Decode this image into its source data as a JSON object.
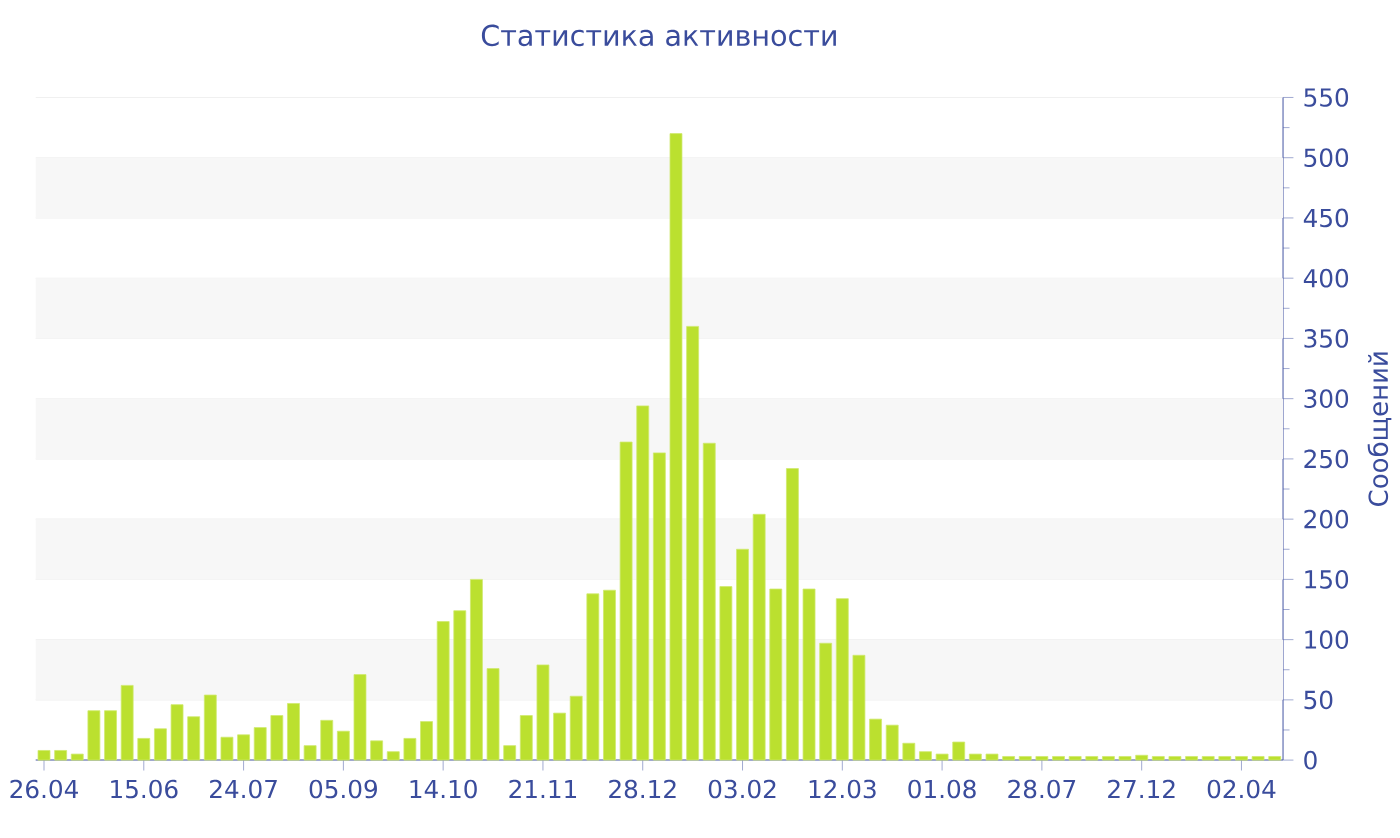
{
  "chart_data": {
    "type": "bar",
    "title": "Статистика активности",
    "ylabel": "Сообщений",
    "categories": [
      "26.04",
      null,
      null,
      null,
      null,
      null,
      "15.06",
      null,
      null,
      null,
      null,
      null,
      "24.07",
      null,
      null,
      null,
      null,
      null,
      "05.09",
      null,
      null,
      null,
      null,
      null,
      "14.10",
      null,
      null,
      null,
      null,
      null,
      "21.11",
      null,
      null,
      null,
      null,
      null,
      "28.12",
      null,
      null,
      null,
      null,
      null,
      "03.02",
      null,
      null,
      null,
      null,
      null,
      "12.03",
      null,
      null,
      null,
      null,
      null,
      "01.08",
      null,
      null,
      null,
      null,
      null,
      "28.07",
      null,
      null,
      null,
      null,
      null,
      "27.12",
      null,
      null,
      null,
      null,
      null,
      "02.04",
      null,
      null
    ],
    "values": [
      8,
      8,
      5,
      41,
      41,
      62,
      18,
      26,
      46,
      36,
      54,
      19,
      21,
      27,
      37,
      47,
      12,
      33,
      24,
      71,
      16,
      7,
      18,
      32,
      115,
      124,
      150,
      76,
      12,
      37,
      79,
      39,
      53,
      138,
      141,
      264,
      294,
      255,
      520,
      360,
      263,
      144,
      175,
      204,
      142,
      242,
      142,
      97,
      134,
      87,
      34,
      29,
      14,
      7,
      5,
      15,
      5,
      5,
      3,
      3,
      3,
      3,
      3,
      3,
      3,
      3,
      4,
      3,
      3,
      3,
      3,
      3,
      3,
      3,
      3
    ],
    "color": "#bbe02f",
    "ylim": [
      0,
      550
    ],
    "yticks": [
      0,
      50,
      100,
      150,
      200,
      250,
      300,
      350,
      400,
      450,
      500,
      550
    ],
    "grid": "y"
  }
}
